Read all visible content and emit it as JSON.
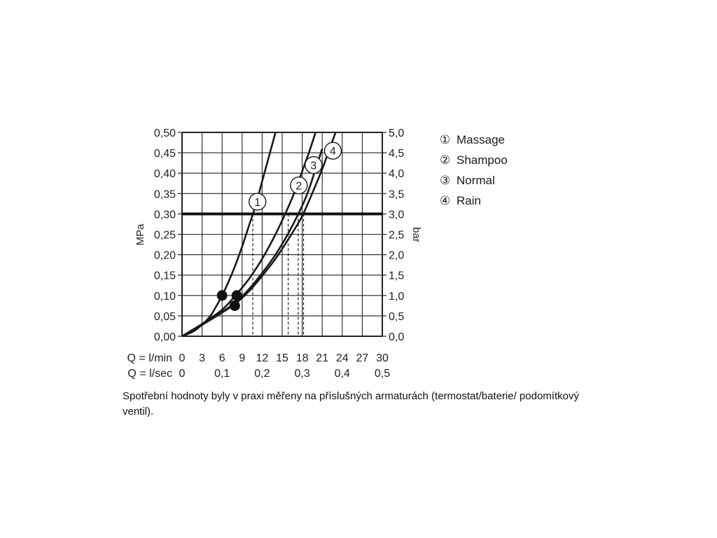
{
  "chart_data": {
    "type": "line",
    "title": "",
    "y_left_label": "MPa",
    "y_right_label": "bar",
    "x_primary_label": "Q = l/min",
    "x_secondary_label": "Q = l/sec",
    "x_ticks": [
      "0",
      "3",
      "6",
      "9",
      "12",
      "15",
      "18",
      "21",
      "24",
      "27",
      "30"
    ],
    "x_secondary_ticks": [
      {
        "label": "0",
        "lpm": 0
      },
      {
        "label": "0,1",
        "lpm": 6
      },
      {
        "label": "0,2",
        "lpm": 12
      },
      {
        "label": "0,3",
        "lpm": 18
      },
      {
        "label": "0,4",
        "lpm": 24
      },
      {
        "label": "0,5",
        "lpm": 30
      }
    ],
    "y_left_ticks": [
      "0,00",
      "0,05",
      "0,10",
      "0,15",
      "0,20",
      "0,25",
      "0,30",
      "0,35",
      "0,40",
      "0,45",
      "0,50"
    ],
    "y_right_ticks": [
      "0,0",
      "0,5",
      "1,0",
      "1,5",
      "2,0",
      "2,5",
      "3,0",
      "3,5",
      "4,0",
      "4,5",
      "5,0"
    ],
    "xlim": [
      0,
      30
    ],
    "ylim": [
      0,
      0.5
    ],
    "grid": true,
    "reference_line": {
      "y": 0.3
    },
    "series": [
      {
        "name": "1",
        "x": [
          0,
          2,
          4,
          5,
          6,
          7,
          8,
          9,
          10,
          11,
          12,
          13,
          14
        ],
        "y": [
          0,
          0.015,
          0.045,
          0.07,
          0.1,
          0.135,
          0.175,
          0.22,
          0.27,
          0.32,
          0.38,
          0.44,
          0.5
        ],
        "label_at": {
          "x": 11.3,
          "y": 0.33
        },
        "crossing_x": 10.6
      },
      {
        "name": "2",
        "x": [
          0,
          3,
          6,
          8,
          10,
          12,
          14,
          16,
          17,
          18,
          19,
          20
        ],
        "y": [
          0,
          0.03,
          0.065,
          0.1,
          0.14,
          0.19,
          0.25,
          0.32,
          0.36,
          0.405,
          0.45,
          0.5
        ],
        "label_at": {
          "x": 17.5,
          "y": 0.37
        },
        "crossing_x": 15.9
      },
      {
        "name": "3",
        "x": [
          0,
          3,
          6,
          8,
          10,
          12,
          14,
          16,
          18,
          19,
          20,
          21
        ],
        "y": [
          0,
          0.03,
          0.06,
          0.083,
          0.115,
          0.155,
          0.2,
          0.255,
          0.32,
          0.36,
          0.41,
          0.46
        ],
        "label_at": {
          "x": 19.7,
          "y": 0.42
        },
        "crossing_x": 17.4
      },
      {
        "name": "4",
        "x": [
          0,
          3,
          6,
          8,
          10,
          12,
          14,
          16,
          18,
          20,
          21,
          22,
          23
        ],
        "y": [
          0,
          0.028,
          0.058,
          0.08,
          0.11,
          0.148,
          0.19,
          0.24,
          0.295,
          0.37,
          0.41,
          0.455,
          0.5
        ],
        "label_at": {
          "x": 22.6,
          "y": 0.455
        },
        "crossing_x": 18.2
      }
    ],
    "markers": [
      {
        "x": 6,
        "y": 0.1
      },
      {
        "x": 8.2,
        "y": 0.1
      },
      {
        "x": 7.9,
        "y": 0.075
      }
    ]
  },
  "legend": [
    {
      "symbol": "①",
      "label": "Massage"
    },
    {
      "symbol": "②",
      "label": "Shampoo"
    },
    {
      "symbol": "③",
      "label": "Normal"
    },
    {
      "symbol": "④",
      "label": "Rain"
    }
  ],
  "caption": "Spotřební hodnoty byly v praxi měřeny na příslušných armaturách (termostat/baterie/ podomítkový ventil)."
}
